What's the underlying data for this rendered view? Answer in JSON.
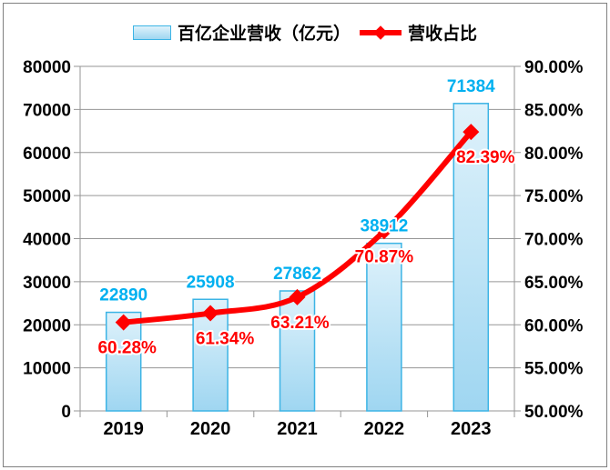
{
  "colors": {
    "bar_fill_top": "#DFF2FB",
    "bar_fill_bottom": "#9FD6F1",
    "bar_border": "#3CB4E5",
    "line": "#FF0000",
    "bar_value_label": "#00B0F0",
    "ratio_value_label": "#FF0000",
    "gridline": "#969696",
    "axis_text": "#000000",
    "outer_border": "#808080",
    "background": "#FFFFFF"
  },
  "legend": {
    "position": "top",
    "items": [
      {
        "label": "百亿企业营收（亿元）",
        "marker": "bar-swatch"
      },
      {
        "label": "营收占比",
        "marker": "red-line-diamond"
      }
    ]
  },
  "chart_data": {
    "type": "bar",
    "subtype": "combo-bar-line",
    "title": "",
    "xlabel": "",
    "ylabel": "",
    "grid": true,
    "legend_position": "top",
    "categories": [
      "2019",
      "2020",
      "2021",
      "2022",
      "2023"
    ],
    "series": [
      {
        "name": "百亿企业营收（亿元）",
        "type": "bar",
        "axis": "left",
        "values": [
          22890,
          25908,
          27862,
          38912,
          71384
        ],
        "labels": [
          "22890",
          "25908",
          "27862",
          "38912",
          "71384"
        ]
      },
      {
        "name": "营收占比",
        "type": "line",
        "axis": "right",
        "values": [
          60.28,
          61.34,
          63.21,
          70.87,
          82.39
        ],
        "labels": [
          "60.28%",
          "61.34%",
          "63.21%",
          "70.87%",
          "82.39%"
        ]
      }
    ],
    "left_axis": {
      "min": 0,
      "max": 80000,
      "step": 10000,
      "ticks": [
        "0",
        "10000",
        "20000",
        "30000",
        "40000",
        "50000",
        "60000",
        "70000",
        "80000"
      ]
    },
    "right_axis": {
      "min": 50,
      "max": 90,
      "step": 5,
      "ticks": [
        "50.00%",
        "55.00%",
        "60.00%",
        "65.00%",
        "70.00%",
        "75.00%",
        "80.00%",
        "85.00%",
        "90.00%"
      ]
    }
  }
}
